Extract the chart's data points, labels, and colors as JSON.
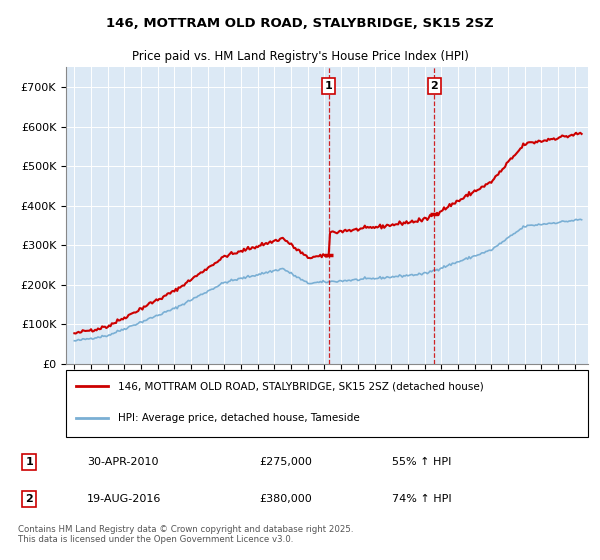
{
  "title_line1": "146, MOTTRAM OLD ROAD, STALYBRIDGE, SK15 2SZ",
  "title_line2": "Price paid vs. HM Land Registry's House Price Index (HPI)",
  "ylim": [
    0,
    750000
  ],
  "yticks": [
    0,
    100000,
    200000,
    300000,
    400000,
    500000,
    600000,
    700000
  ],
  "ytick_labels": [
    "£0",
    "£100K",
    "£200K",
    "£300K",
    "£400K",
    "£500K",
    "£600K",
    "£700K"
  ],
  "property_color": "#cc0000",
  "hpi_color": "#7aafd4",
  "marker1_date_str": "30-APR-2010",
  "marker1_price": "£275,000",
  "marker1_pct": "55% ↑ HPI",
  "marker2_date_str": "19-AUG-2016",
  "marker2_price": "£380,000",
  "marker2_pct": "74% ↑ HPI",
  "legend_property": "146, MOTTRAM OLD ROAD, STALYBRIDGE, SK15 2SZ (detached house)",
  "legend_hpi": "HPI: Average price, detached house, Tameside",
  "footer": "Contains HM Land Registry data © Crown copyright and database right 2025.\nThis data is licensed under the Open Government Licence v3.0.",
  "background_color": "#dce9f5"
}
